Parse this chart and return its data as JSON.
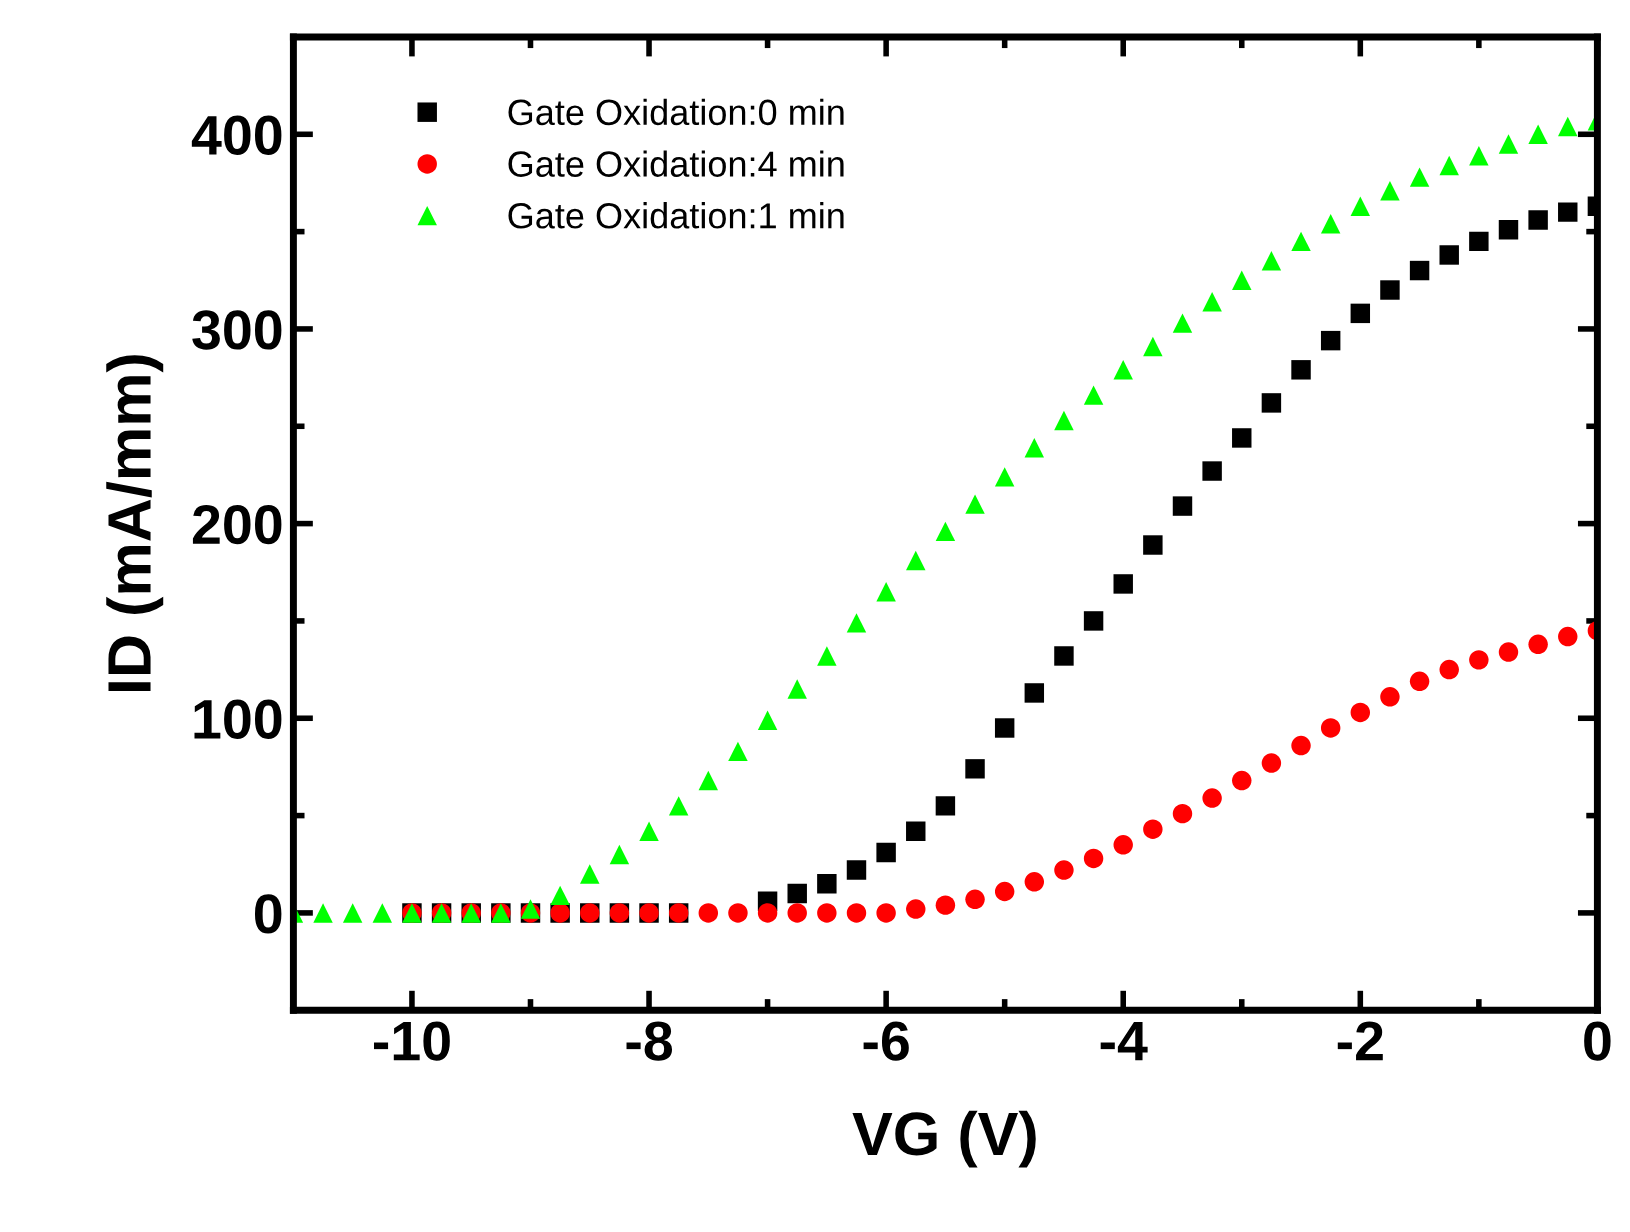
{
  "chart_data": {
    "type": "scatter",
    "xlabel": "VG (V)",
    "ylabel": "ID (mA/mm)",
    "xlim": [
      -11,
      0
    ],
    "ylim": [
      -50,
      450
    ],
    "xticks": [
      -10,
      {
        "value": -9,
        "label": null
      },
      -8,
      {
        "value": -7,
        "label": null
      },
      -6,
      {
        "value": -5,
        "label": null
      },
      -4,
      {
        "value": -3,
        "label": null
      },
      -2,
      {
        "value": -1,
        "label": null
      },
      0
    ],
    "yticks": [
      {
        "value": -50,
        "label": null
      },
      0,
      {
        "value": 50,
        "label": null
      },
      100,
      {
        "value": 150,
        "label": null
      },
      200,
      {
        "value": 250,
        "label": null
      },
      300,
      {
        "value": 350,
        "label": null
      },
      400
    ],
    "grid": false,
    "legend": "top left",
    "series": [
      {
        "name": "Gate Oxidation:0 min",
        "color": "#000000",
        "marker": "square",
        "x": [
          -10,
          -9.75,
          -9.5,
          -9.25,
          -9,
          -8.75,
          -8.5,
          -8.25,
          -8,
          -7.75,
          -7.5,
          -7.25,
          -7,
          -6.75,
          -6.5,
          -6.25,
          -6,
          -5.75,
          -5.5,
          -5.25,
          -5,
          -4.75,
          -4.5,
          -4.25,
          -4,
          -3.75,
          -3.5,
          -3.25,
          -3,
          -2.75,
          -2.5,
          -2.25,
          -2,
          -1.75,
          -1.5,
          -1.25,
          -1,
          -0.75,
          -0.5,
          -0.25,
          0
        ],
        "values": [
          0,
          0,
          0,
          0,
          0,
          0,
          0,
          0,
          0,
          0,
          null,
          null,
          6,
          10,
          15,
          22,
          31,
          42,
          55,
          74,
          95,
          113,
          132,
          150,
          169,
          189,
          209,
          227,
          244,
          262,
          279,
          294,
          308,
          320,
          330,
          338,
          345,
          351,
          356,
          360,
          363
        ]
      },
      {
        "name": "Gate Oxidation:4 min",
        "color": "#ff0000",
        "marker": "circle",
        "x": [
          -10,
          -9.75,
          -9.5,
          -9.25,
          -9,
          -8.75,
          -8.5,
          -8.25,
          -8,
          -7.75,
          -7.5,
          -7.25,
          -7,
          -6.75,
          -6.5,
          -6.25,
          -6,
          -5.75,
          -5.5,
          -5.25,
          -5,
          -4.75,
          -4.5,
          -4.25,
          -4,
          -3.75,
          -3.5,
          -3.25,
          -3,
          -2.75,
          -2.5,
          -2.25,
          -2,
          -1.75,
          -1.5,
          -1.25,
          -1,
          -0.75,
          -0.5,
          -0.25,
          0
        ],
        "values": [
          0,
          0,
          0,
          0,
          0,
          0,
          0,
          0,
          0,
          0,
          0,
          0,
          0,
          0,
          0,
          0,
          0,
          2,
          4,
          7,
          11,
          16,
          22,
          28,
          35,
          43,
          51,
          59,
          68,
          77,
          86,
          95,
          103,
          111,
          119,
          125,
          130,
          134,
          138,
          142,
          145
        ]
      },
      {
        "name": "Gate Oxidation:1 min",
        "color": "#00ff00",
        "marker": "triangle",
        "x": [
          -11,
          -10.75,
          -10.5,
          -10.25,
          -10,
          -9.75,
          -9.5,
          -9.25,
          -9,
          -8.75,
          -8.5,
          -8.25,
          -8,
          -7.75,
          -7.5,
          -7.25,
          -7,
          -6.75,
          -6.5,
          -6.25,
          -6,
          -5.75,
          -5.5,
          -5.25,
          -5,
          -4.75,
          -4.5,
          -4.25,
          -4,
          -3.75,
          -3.5,
          -3.25,
          -3,
          -2.75,
          -2.5,
          -2.25,
          -2,
          -1.75,
          -1.5,
          -1.25,
          -1,
          -0.75,
          -0.5,
          -0.25,
          0
        ],
        "values": [
          0,
          0,
          0,
          0,
          0,
          0,
          0,
          0,
          2,
          9,
          20,
          30,
          42,
          55,
          68,
          83,
          99,
          115,
          132,
          149,
          165,
          181,
          196,
          210,
          224,
          239,
          253,
          266,
          279,
          291,
          303,
          314,
          325,
          335,
          345,
          354,
          363,
          371,
          378,
          384,
          389,
          395,
          400,
          404,
          407
        ]
      }
    ]
  }
}
